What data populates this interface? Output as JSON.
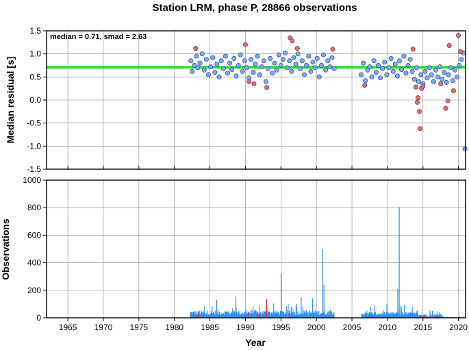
{
  "title": "Station LRM, phase P, 28866 observations",
  "colors": {
    "median_line": "#22e622",
    "point_normal": "#7aa8f5",
    "point_outlier": "#f26a5a",
    "bar_normal": "#2a8ef0",
    "bar_outlier": "#e83a3a"
  },
  "chart_data": [
    {
      "type": "scatter",
      "title": "Station LRM, phase P, 28866 observations",
      "ylabel": "Median residual [s]",
      "xlim": [
        1962,
        2021
      ],
      "ylim": [
        -1.5,
        1.5
      ],
      "x_ticks": [
        "1965",
        "1970",
        "1975",
        "1980",
        "1985",
        "1990",
        "1995",
        "2000",
        "2005",
        "2010",
        "2015",
        "2020"
      ],
      "y_ticks": [
        "1.5",
        "1.0",
        "0.5",
        "0.0",
        "-0.5",
        "-1.0",
        "-1.5"
      ],
      "grid": true,
      "annotation": "median = 0.71, smad = 2.63",
      "median": 0.71,
      "series": [
        {
          "points": [
            [
              1982.3,
              0.85
            ],
            [
              1982.5,
              0.62
            ],
            [
              1982.8,
              0.75
            ],
            [
              1983.1,
              0.95
            ],
            [
              1983.3,
              0.7
            ],
            [
              1983.6,
              0.8
            ],
            [
              1983.9,
              1.0
            ],
            [
              1984.2,
              0.65
            ],
            [
              1984.5,
              0.88
            ],
            [
              1984.8,
              0.55
            ],
            [
              1985.1,
              0.72
            ],
            [
              1985.4,
              0.92
            ],
            [
              1985.7,
              0.6
            ],
            [
              1986.0,
              0.78
            ],
            [
              1986.3,
              0.5
            ],
            [
              1986.6,
              0.85
            ],
            [
              1986.9,
              0.68
            ],
            [
              1987.2,
              0.95
            ],
            [
              1987.5,
              0.58
            ],
            [
              1987.8,
              0.8
            ],
            [
              1988.1,
              0.66
            ],
            [
              1988.4,
              0.9
            ],
            [
              1988.7,
              0.52
            ],
            [
              1989.0,
              0.75
            ],
            [
              1989.3,
              0.98
            ],
            [
              1989.6,
              0.62
            ],
            [
              1989.9,
              0.85
            ],
            [
              1990.2,
              0.7
            ],
            [
              1990.5,
              0.48
            ],
            [
              1990.8,
              0.88
            ],
            [
              1991.1,
              0.6
            ],
            [
              1991.4,
              0.78
            ],
            [
              1991.7,
              0.95
            ],
            [
              1992.0,
              0.55
            ],
            [
              1992.3,
              0.72
            ],
            [
              1992.6,
              0.85
            ],
            [
              1992.9,
              0.4
            ],
            [
              1993.2,
              0.68
            ],
            [
              1993.5,
              0.9
            ],
            [
              1993.8,
              0.58
            ],
            [
              1994.1,
              0.8
            ],
            [
              1994.4,
              0.65
            ],
            [
              1994.7,
              0.98
            ],
            [
              1995.0,
              0.75
            ],
            [
              1995.3,
              0.88
            ],
            [
              1995.6,
              1.02
            ],
            [
              1995.9,
              0.7
            ],
            [
              1996.2,
              0.85
            ],
            [
              1996.5,
              0.62
            ],
            [
              1996.8,
              0.92
            ],
            [
              1997.1,
              0.78
            ],
            [
              1997.4,
              1.0
            ],
            [
              1997.7,
              0.68
            ],
            [
              1998.0,
              0.85
            ],
            [
              1998.3,
              0.55
            ],
            [
              1998.6,
              0.75
            ],
            [
              1998.9,
              0.95
            ],
            [
              1999.2,
              0.62
            ],
            [
              1999.5,
              0.82
            ],
            [
              1999.8,
              0.7
            ],
            [
              2000.1,
              0.9
            ],
            [
              2000.4,
              0.5
            ],
            [
              2000.7,
              0.75
            ],
            [
              2001.0,
              0.98
            ],
            [
              2001.3,
              0.65
            ],
            [
              2001.6,
              0.85
            ],
            [
              2001.9,
              0.72
            ],
            [
              2002.2,
              0.92
            ],
            [
              2002.5,
              0.68
            ],
            [
              2006.3,
              0.55
            ],
            [
              2006.6,
              0.8
            ],
            [
              2006.9,
              0.42
            ],
            [
              2007.2,
              0.65
            ],
            [
              2007.5,
              0.72
            ],
            [
              2007.8,
              0.5
            ],
            [
              2008.1,
              0.85
            ],
            [
              2008.4,
              0.6
            ],
            [
              2008.7,
              0.75
            ],
            [
              2009.0,
              0.48
            ],
            [
              2009.3,
              0.68
            ],
            [
              2009.6,
              0.82
            ],
            [
              2009.9,
              0.55
            ],
            [
              2010.2,
              0.7
            ],
            [
              2010.5,
              0.9
            ],
            [
              2010.8,
              0.62
            ],
            [
              2011.1,
              0.78
            ],
            [
              2011.4,
              0.52
            ],
            [
              2011.7,
              0.85
            ],
            [
              2012.0,
              0.66
            ],
            [
              2012.3,
              0.95
            ],
            [
              2012.6,
              0.58
            ],
            [
              2012.9,
              0.75
            ],
            [
              2013.2,
              0.88
            ],
            [
              2013.5,
              0.62
            ],
            [
              2013.8,
              0.45
            ],
            [
              2014.1,
              0.7
            ],
            [
              2014.4,
              0.4
            ],
            [
              2014.7,
              0.55
            ],
            [
              2015.0,
              0.35
            ],
            [
              2015.3,
              0.62
            ],
            [
              2015.6,
              0.48
            ],
            [
              2015.9,
              0.7
            ],
            [
              2016.2,
              0.55
            ],
            [
              2016.5,
              0.4
            ],
            [
              2016.8,
              0.65
            ],
            [
              2017.1,
              0.5
            ],
            [
              2017.4,
              0.72
            ],
            [
              2017.7,
              0.45
            ],
            [
              2018.0,
              0.6
            ],
            [
              2018.3,
              0.38
            ],
            [
              2018.6,
              0.55
            ],
            [
              2018.9,
              0.7
            ],
            [
              2019.2,
              0.42
            ],
            [
              2019.5,
              0.65
            ],
            [
              2019.8,
              0.5
            ],
            [
              2020.1,
              0.75
            ],
            [
              2020.4,
              0.88
            ],
            [
              2020.7,
              1.02
            ],
            [
              2020.9,
              -1.06
            ]
          ]
        },
        {
          "points": [
            [
              1983.0,
              1.12
            ],
            [
              1990.0,
              1.2
            ],
            [
              1990.5,
              0.4
            ],
            [
              1991.2,
              0.35
            ],
            [
              1993.0,
              0.27
            ],
            [
              1996.3,
              1.35
            ],
            [
              1996.6,
              1.28
            ],
            [
              1997.3,
              1.12
            ],
            [
              2002.3,
              1.1
            ],
            [
              2006.8,
              0.32
            ],
            [
              2013.6,
              1.1
            ],
            [
              2014.0,
              0.28
            ],
            [
              2014.2,
              -0.05
            ],
            [
              2014.3,
              0.05
            ],
            [
              2014.5,
              -0.25
            ],
            [
              2014.6,
              -0.62
            ],
            [
              2014.8,
              0.25
            ],
            [
              2015.0,
              0.3
            ],
            [
              2017.5,
              0.35
            ],
            [
              2018.2,
              -0.18
            ],
            [
              2018.5,
              -0.02
            ],
            [
              2018.7,
              1.18
            ],
            [
              2019.3,
              0.2
            ],
            [
              2020.0,
              1.4
            ],
            [
              2020.3,
              1.05
            ]
          ]
        }
      ]
    },
    {
      "type": "bar",
      "xlabel": "Year",
      "ylabel": "Observations",
      "xlim": [
        1962,
        2021
      ],
      "ylim": [
        0,
        1000
      ],
      "x_ticks": [
        "1965",
        "1970",
        "1975",
        "1980",
        "1985",
        "1990",
        "1995",
        "2000",
        "2005",
        "2010",
        "2015",
        "2020"
      ],
      "y_ticks": [
        "1000",
        "800",
        "600",
        "400",
        "200",
        "0"
      ],
      "grid": true,
      "series": [
        {
          "ranges": [
            {
              "start": 1982.2,
              "end": 2002.5,
              "base": 55,
              "amp": 35
            },
            {
              "start": 2006.3,
              "end": 2013.8,
              "base": 45,
              "amp": 30
            },
            {
              "start": 2013.8,
              "end": 2017.8,
              "base": 30,
              "amp": 25
            },
            {
              "start": 2018.0,
              "end": 2021.0,
              "base": 6,
              "amp": 6
            }
          ],
          "peaks": [
            [
              1995.0,
              320
            ],
            [
              2000.8,
              500
            ],
            [
              2001.0,
              240
            ],
            [
              2011.6,
              805
            ],
            [
              2011.4,
              210
            ],
            [
              1985.9,
              130
            ],
            [
              1988.6,
              155
            ],
            [
              1997.8,
              150
            ],
            [
              1999.4,
              140
            ]
          ]
        },
        {
          "bars": [
            [
              1983.3,
              40
            ],
            [
              1990.4,
              45
            ],
            [
              1991.8,
              30
            ],
            [
              1992.9,
              135
            ],
            [
              1996.1,
              35
            ],
            [
              2002.3,
              30
            ],
            [
              2014.2,
              25
            ],
            [
              2014.5,
              18
            ],
            [
              2015.1,
              20
            ],
            [
              2016.0,
              15
            ],
            [
              2016.8,
              12
            ],
            [
              2020.1,
              10
            ]
          ]
        }
      ]
    }
  ]
}
